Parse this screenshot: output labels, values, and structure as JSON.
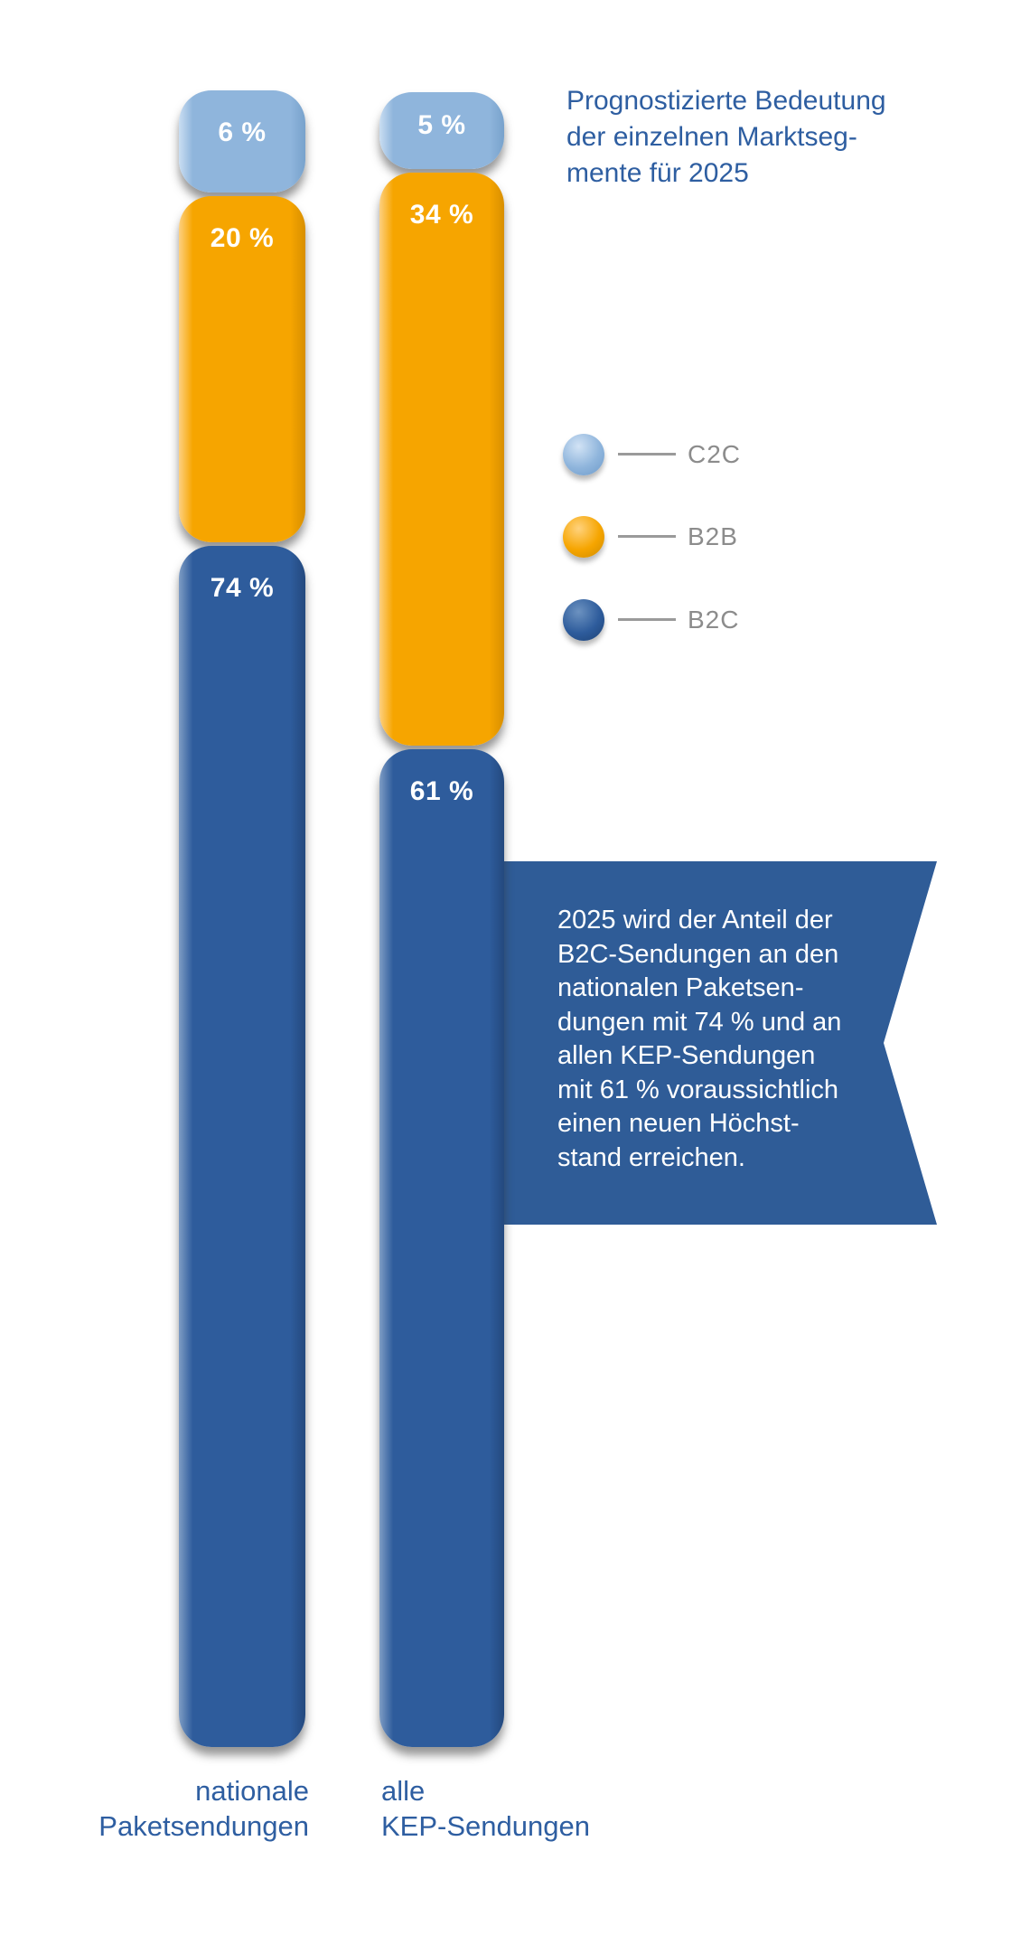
{
  "header": {
    "title_lines": [
      "Prognostizierte Bedeutung",
      "der einzelnen Marktseg-",
      "mente für 2025"
    ],
    "title_color": "#2E5EA1"
  },
  "legend": {
    "items": [
      {
        "label": "C2C",
        "color": "#8FB5DC"
      },
      {
        "label": "B2B",
        "color": "#F6A500"
      },
      {
        "label": "B2C",
        "color": "#2E5C9C"
      }
    ]
  },
  "callout": {
    "lines": [
      "2025 wird der Anteil der",
      "B2C-Sendungen an den",
      "nationalen Paketsen-",
      "dungen mit 74 % und an",
      "allen KEP-Sendungen",
      "mit 61 % voraussichtlich",
      "einen neuen Höchst-",
      "stand erreichen."
    ],
    "background": "#2F5C97",
    "text_color": "#FFFFFF"
  },
  "chart_data": {
    "type": "bar",
    "stacked": true,
    "orientation": "vertical",
    "unit": "%",
    "title": "Prognostizierte Bedeutung der einzelnen Marktsegmente für 2025",
    "categories": [
      "nationale Paketsendungen",
      "alle KEP-Sendungen"
    ],
    "category_label_lines": [
      [
        "nationale",
        "Paketsendungen"
      ],
      [
        "alle",
        "KEP-Sendungen"
      ]
    ],
    "series": [
      {
        "name": "C2C",
        "color": "#8FB5DC",
        "values": [
          6,
          5
        ]
      },
      {
        "name": "B2B",
        "color": "#F6A500",
        "values": [
          20,
          34
        ]
      },
      {
        "name": "B2C",
        "color": "#2E5C9C",
        "values": [
          74,
          61
        ]
      }
    ],
    "value_labels": [
      [
        "6 %",
        "20 %",
        "74 %"
      ],
      [
        "5 %",
        "34 %",
        "61 %"
      ]
    ],
    "ylim": [
      0,
      100
    ],
    "grid": false,
    "axes": "none",
    "legend_position": "right"
  }
}
